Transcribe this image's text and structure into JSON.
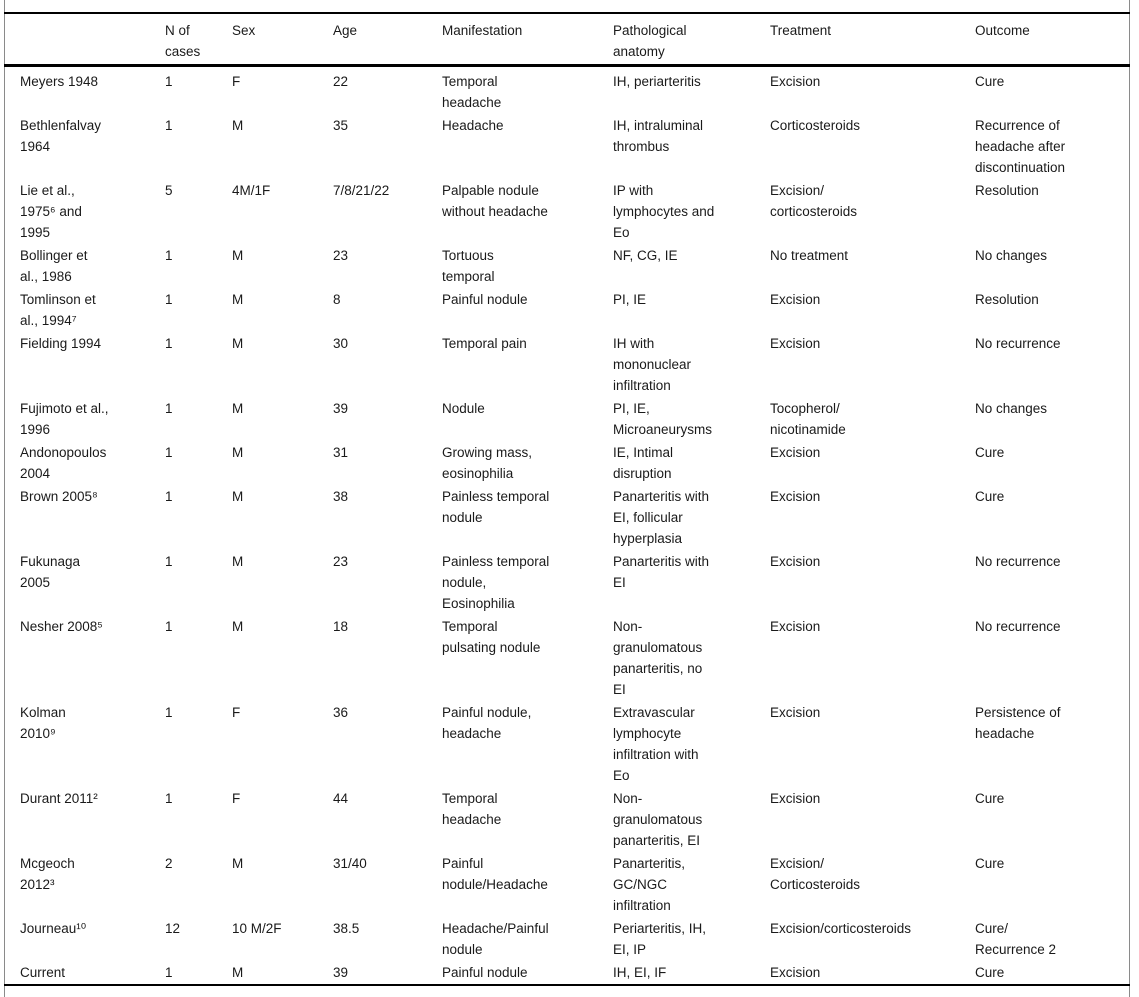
{
  "table": {
    "columns": [
      "",
      "N of\ncases",
      "Sex",
      "Age",
      "Manifestation",
      "Pathological\nanatomy",
      "Treatment",
      "Outcome"
    ],
    "rows": [
      {
        "study": "Meyers 1948",
        "n_cases": "1",
        "sex": "F",
        "age": "22",
        "manifestation": "Temporal\nheadache",
        "pathological_anatomy": "IH, periarteritis",
        "treatment": "Excision",
        "outcome": "Cure"
      },
      {
        "study": "Bethlenfalvay\n1964",
        "n_cases": "1",
        "sex": "M",
        "age": "35",
        "manifestation": "Headache",
        "pathological_anatomy": "IH, intraluminal\nthrombus",
        "treatment": "Corticosteroids",
        "outcome": "Recurrence of\nheadache after\ndiscontinuation"
      },
      {
        "study": "Lie et al.,\n1975⁶ and\n1995",
        "n_cases": "5",
        "sex": "4M/1F",
        "age": "7/8/21/22",
        "manifestation": "Palpable nodule\nwithout headache",
        "pathological_anatomy": "IP with\nlymphocytes and\nEo",
        "treatment": "Excision/\ncorticosteroids",
        "outcome": "Resolution"
      },
      {
        "study": "Bollinger et\nal., 1986",
        "n_cases": "1",
        "sex": "M",
        "age": "23",
        "manifestation": "Tortuous\ntemporal",
        "pathological_anatomy": "NF, CG, IE",
        "treatment": "No treatment",
        "outcome": "No changes"
      },
      {
        "study": "Tomlinson et\nal., 1994⁷",
        "n_cases": "1",
        "sex": "M",
        "age": "8",
        "manifestation": "Painful nodule",
        "pathological_anatomy": "PI, IE",
        "treatment": "Excision",
        "outcome": "Resolution"
      },
      {
        "study": "Fielding 1994",
        "n_cases": "1",
        "sex": "M",
        "age": "30",
        "manifestation": "Temporal pain",
        "pathological_anatomy": "IH with\nmononuclear\ninfiltration",
        "treatment": "Excision",
        "outcome": "No recurrence"
      },
      {
        "study": "Fujimoto et al.,\n1996",
        "n_cases": "1",
        "sex": "M",
        "age": "39",
        "manifestation": "Nodule",
        "pathological_anatomy": "PI, IE,\nMicroaneurysms",
        "treatment": "Tocopherol/\nnicotinamide",
        "outcome": "No changes"
      },
      {
        "study": "Andonopoulos\n2004",
        "n_cases": "1",
        "sex": "M",
        "age": "31",
        "manifestation": "Growing mass,\neosinophilia",
        "pathological_anatomy": "IE, Intimal\ndisruption",
        "treatment": "Excision",
        "outcome": "Cure"
      },
      {
        "study": "Brown 2005⁸",
        "n_cases": "1",
        "sex": "M",
        "age": "38",
        "manifestation": "Painless temporal\nnodule",
        "pathological_anatomy": "Panarteritis with\nEI, follicular\nhyperplasia",
        "treatment": "Excision",
        "outcome": "Cure"
      },
      {
        "study": "Fukunaga\n2005",
        "n_cases": "1",
        "sex": "M",
        "age": "23",
        "manifestation": "Painless temporal\nnodule,\nEosinophilia",
        "pathological_anatomy": "Panarteritis with\nEI",
        "treatment": "Excision",
        "outcome": "No recurrence"
      },
      {
        "study": "Nesher 2008⁵",
        "n_cases": "1",
        "sex": "M",
        "age": "18",
        "manifestation": "Temporal\npulsating nodule",
        "pathological_anatomy": "Non-\ngranulomatous\npanarteritis, no\nEI",
        "treatment": "Excision",
        "outcome": "No recurrence"
      },
      {
        "study": "Kolman\n2010⁹",
        "n_cases": "1",
        "sex": "F",
        "age": "36",
        "manifestation": "Painful nodule,\nheadache",
        "pathological_anatomy": "Extravascular\nlymphocyte\ninfiltration with\nEo",
        "treatment": "Excision",
        "outcome": "Persistence of\nheadache"
      },
      {
        "study": "Durant 2011²",
        "n_cases": "1",
        "sex": "F",
        "age": "44",
        "manifestation": "Temporal\nheadache",
        "pathological_anatomy": "Non-\ngranulomatous\npanarteritis, EI",
        "treatment": "Excision",
        "outcome": "Cure"
      },
      {
        "study": "Mcgeoch\n2012³",
        "n_cases": "2",
        "sex": "M",
        "age": "31/40",
        "manifestation": "Painful\nnodule/Headache",
        "pathological_anatomy": "Panarteritis,\nGC/NGC\ninfiltration",
        "treatment": "Excision/\nCorticosteroids",
        "outcome": "Cure"
      },
      {
        "study": "Journeau¹⁰",
        "n_cases": "12",
        "sex": "10 M/2F",
        "age": "38.5",
        "manifestation": "Headache/Painful\nnodule",
        "pathological_anatomy": "Periarteritis, IH,\nEI, IP",
        "treatment": "Excision/corticosteroids",
        "outcome": "Cure/\nRecurrence 2"
      },
      {
        "study": "Current",
        "n_cases": "1",
        "sex": "M",
        "age": "39",
        "manifestation": "Painful nodule",
        "pathological_anatomy": "IH, EI, IF",
        "treatment": "Excision",
        "outcome": "Cure"
      }
    ]
  },
  "colors": {
    "rule": "#000000",
    "text": "#1a1a1a",
    "frame_line": "#8a8a8a",
    "background": "#ffffff"
  }
}
